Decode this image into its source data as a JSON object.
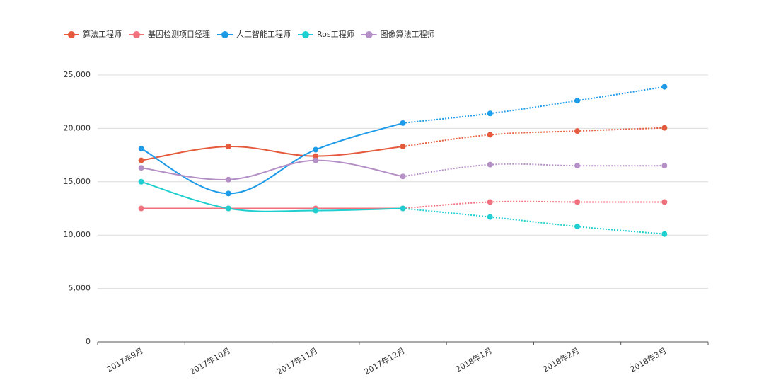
{
  "chart_data": {
    "type": "line",
    "categories": [
      "2017年9月",
      "2017年10月",
      "2017年11月",
      "2017年12月",
      "2018年1月",
      "2018年2月",
      "2018年3月"
    ],
    "series": [
      {
        "name": "算法工程师",
        "color": "#e55a3c",
        "values": [
          17000,
          18300,
          17400,
          18300,
          19400,
          19750,
          20050
        ]
      },
      {
        "name": "基因检测项目经理",
        "color": "#f0707e",
        "values": [
          12500,
          12500,
          12500,
          12500,
          13100,
          13100,
          13100
        ]
      },
      {
        "name": "人工智能工程师",
        "color": "#1e9be8",
        "values": [
          18100,
          13900,
          18000,
          20500,
          21400,
          22600,
          23900
        ]
      },
      {
        "name": "Ros工程师",
        "color": "#1fcfcf",
        "values": [
          15000,
          12500,
          12300,
          12500,
          11700,
          10800,
          10100
        ]
      },
      {
        "name": "图像算法工程师",
        "color": "#b48fc6",
        "values": [
          16300,
          15200,
          17000,
          15500,
          16600,
          16500,
          16500
        ]
      }
    ],
    "ylim": [
      0,
      25000
    ],
    "yticks": [
      0,
      {
        "value": 5000,
        "label": "5,000"
      },
      {
        "value": 10000,
        "label": "10,000"
      },
      {
        "value": 15000,
        "label": "15,000"
      },
      {
        "value": 20000,
        "label": "20,000"
      },
      {
        "value": 25000,
        "label": "25,000"
      }
    ],
    "grid": true,
    "legend": "top-left"
  }
}
